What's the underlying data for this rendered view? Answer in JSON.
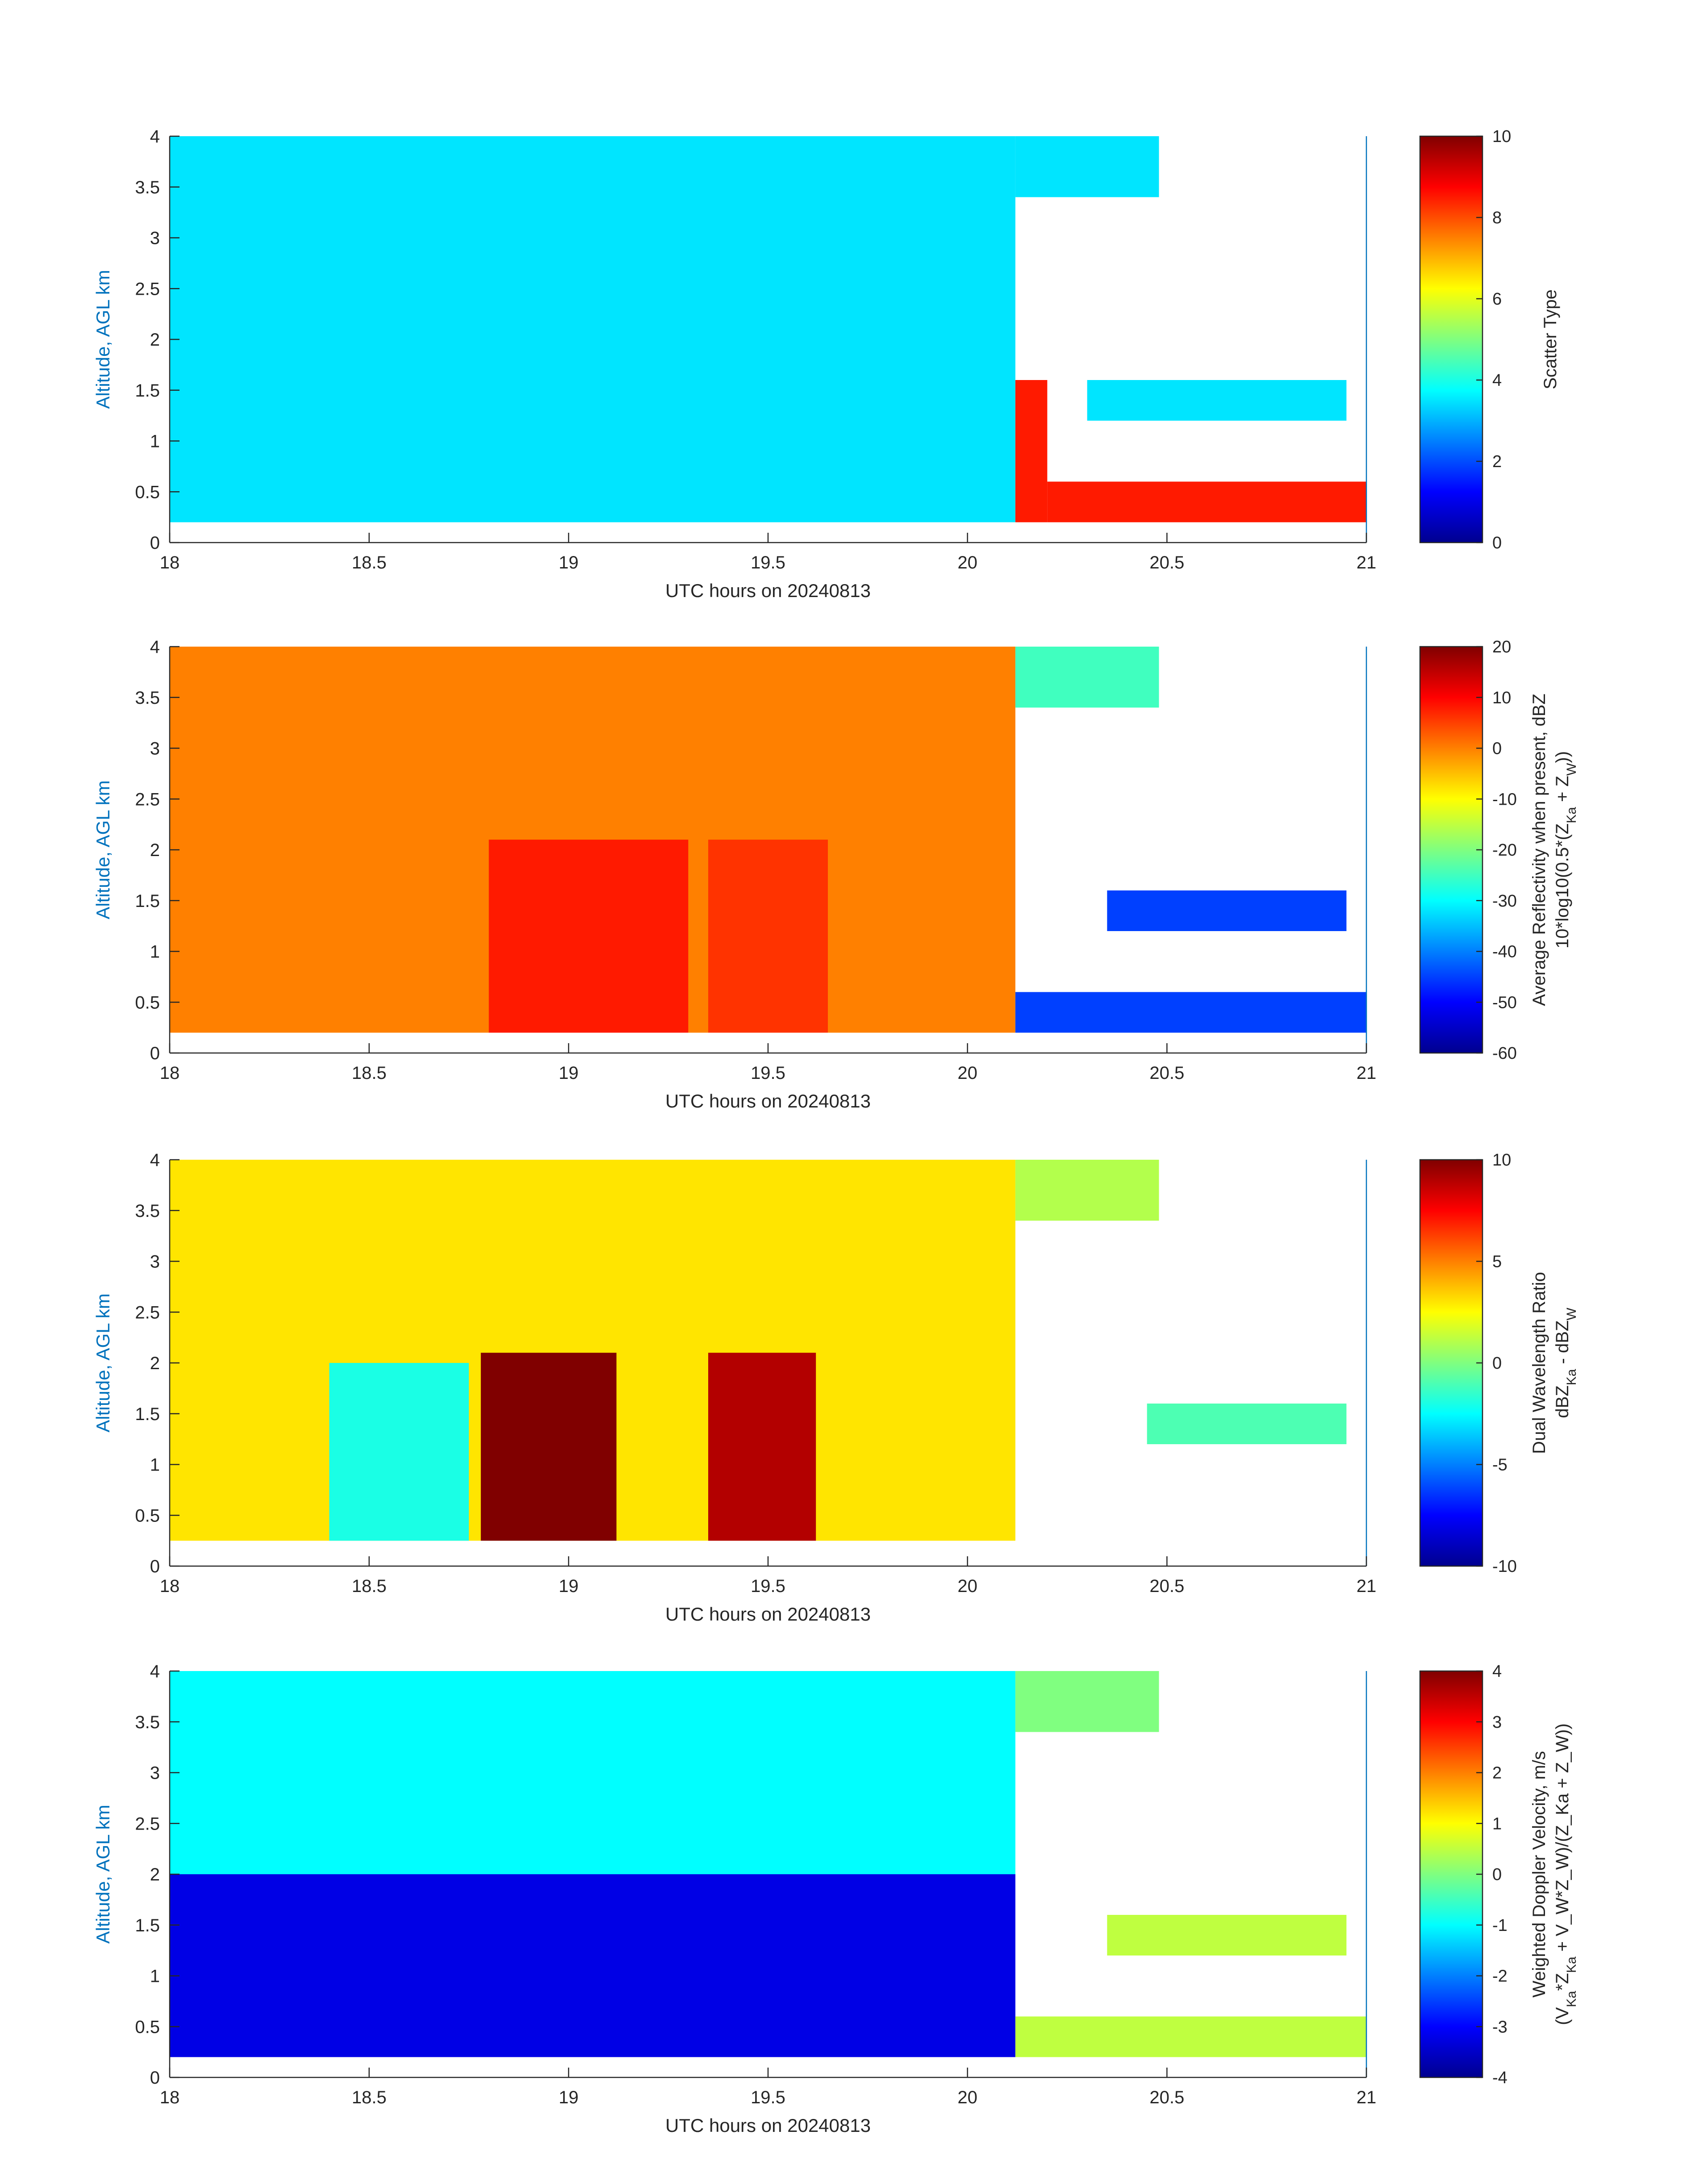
{
  "chart_data": [
    {
      "type": "heatmap",
      "xlabel": "UTC hours on 20240813",
      "ylabel": "Altitude, AGL km",
      "x_ticks": [
        18,
        18.5,
        19,
        19.5,
        20,
        20.5,
        21
      ],
      "y_ticks": [
        0,
        0.5,
        1,
        1.5,
        2,
        2.5,
        3,
        3.5,
        4
      ],
      "xlim": [
        18,
        21
      ],
      "ylim": [
        0,
        4
      ],
      "colorbar": {
        "title": "Scatter Type",
        "ticks": [
          0,
          2,
          4,
          6,
          8,
          10
        ],
        "range": [
          0,
          10
        ]
      },
      "regions": [
        {
          "x": [
            18,
            20.12
          ],
          "y": [
            0.2,
            4.0
          ],
          "value": 3.5
        },
        {
          "x": [
            20.12,
            20.48
          ],
          "y": [
            3.4,
            4.0
          ],
          "value": 3.5
        },
        {
          "x": [
            20.3,
            20.95
          ],
          "y": [
            1.2,
            1.6
          ],
          "value": 3.5
        },
        {
          "x": [
            20.12,
            20.2
          ],
          "y": [
            0.2,
            1.6
          ],
          "value": 8.5
        },
        {
          "x": [
            20.2,
            21
          ],
          "y": [
            0.2,
            0.6
          ],
          "value": 8.5
        }
      ]
    },
    {
      "type": "heatmap",
      "xlabel": "UTC hours on 20240813",
      "ylabel": "Altitude, AGL km",
      "x_ticks": [
        18,
        18.5,
        19,
        19.5,
        20,
        20.5,
        21
      ],
      "y_ticks": [
        0,
        0.5,
        1,
        1.5,
        2,
        2.5,
        3,
        3.5,
        4
      ],
      "xlim": [
        18,
        21
      ],
      "ylim": [
        0,
        4
      ],
      "colorbar": {
        "title_line1": "Average Reflectivity when present, dBZ",
        "title_line2_prefix": "10*log10(0.5*(Z",
        "title_line2_sub1": "Ka",
        "title_line2_mid": " + Z",
        "title_line2_sub2": "W",
        "title_line2_suffix": "))",
        "ticks": [
          -60,
          -50,
          -40,
          -30,
          -20,
          -10,
          0,
          10,
          20
        ],
        "range": [
          -60,
          20
        ]
      },
      "regions": [
        {
          "x": [
            18,
            20.12
          ],
          "y": [
            0.2,
            4.0
          ],
          "value": 0
        },
        {
          "x": [
            18.8,
            19.3
          ],
          "y": [
            0.2,
            2.1
          ],
          "value": 8
        },
        {
          "x": [
            19.35,
            19.65
          ],
          "y": [
            0.2,
            2.1
          ],
          "value": 6
        },
        {
          "x": [
            20.12,
            20.48
          ],
          "y": [
            3.4,
            4.0
          ],
          "value": -25
        },
        {
          "x": [
            20.35,
            20.95
          ],
          "y": [
            1.2,
            1.6
          ],
          "value": -45
        },
        {
          "x": [
            20.12,
            21
          ],
          "y": [
            0.2,
            0.6
          ],
          "value": -45
        }
      ]
    },
    {
      "type": "heatmap",
      "xlabel": "UTC hours on 20240813",
      "ylabel": "Altitude, AGL km",
      "x_ticks": [
        18,
        18.5,
        19,
        19.5,
        20,
        20.5,
        21
      ],
      "y_ticks": [
        0,
        0.5,
        1,
        1.5,
        2,
        2.5,
        3,
        3.5,
        4
      ],
      "xlim": [
        18,
        21
      ],
      "ylim": [
        0,
        4
      ],
      "colorbar": {
        "title_line1": "Dual Wavelength Ratio",
        "title_line2_prefix": "dBZ",
        "title_line2_sub1": "Ka",
        "title_line2_mid": " - dBZ",
        "title_line2_sub2": "W",
        "title_line2_suffix": "",
        "ticks": [
          -10,
          -5,
          0,
          5,
          10
        ],
        "range": [
          -10,
          10
        ]
      },
      "regions": [
        {
          "x": [
            18,
            20.12
          ],
          "y": [
            0.25,
            4.0
          ],
          "value": 3
        },
        {
          "x": [
            18.78,
            19.12
          ],
          "y": [
            0.25,
            2.1
          ],
          "value": 10
        },
        {
          "x": [
            19.35,
            19.62
          ],
          "y": [
            0.25,
            2.1
          ],
          "value": 9
        },
        {
          "x": [
            18.4,
            18.75
          ],
          "y": [
            0.25,
            2.0
          ],
          "value": -2
        },
        {
          "x": [
            20.12,
            20.48
          ],
          "y": [
            3.4,
            4.0
          ],
          "value": 1
        },
        {
          "x": [
            20.45,
            20.95
          ],
          "y": [
            1.2,
            1.6
          ],
          "value": -1
        }
      ]
    },
    {
      "type": "heatmap",
      "xlabel": "UTC hours on 20240813",
      "ylabel": "Altitude, AGL km",
      "x_ticks": [
        18,
        18.5,
        19,
        19.5,
        20,
        20.5,
        21
      ],
      "y_ticks": [
        0,
        0.5,
        1,
        1.5,
        2,
        2.5,
        3,
        3.5,
        4
      ],
      "xlim": [
        18,
        21
      ],
      "ylim": [
        0,
        4
      ],
      "colorbar": {
        "title_line1": "Weighted Doppler Velocity, m/s",
        "title_line2_prefix": "(V",
        "title_line2_sub1": "Ka",
        "title_line2_mid": "*Z",
        "title_line2_sub2": "Ka",
        "title_line2_suffix": " + V_W*Z_W)/(Z_Ka + Z_W))",
        "ticks": [
          -4,
          -3,
          -2,
          -1,
          0,
          1,
          2,
          3,
          4
        ],
        "range": [
          -4,
          4
        ]
      },
      "regions": [
        {
          "x": [
            18,
            20.12
          ],
          "y": [
            2.0,
            4.0
          ],
          "value": -1
        },
        {
          "x": [
            18,
            20.12
          ],
          "y": [
            0.2,
            2.0
          ],
          "value": -3.2
        },
        {
          "x": [
            20.12,
            20.48
          ],
          "y": [
            3.4,
            4.0
          ],
          "value": 0
        },
        {
          "x": [
            20.35,
            20.95
          ],
          "y": [
            1.2,
            1.6
          ],
          "value": 0.5
        },
        {
          "x": [
            20.12,
            21
          ],
          "y": [
            0.2,
            0.6
          ],
          "value": 0.5
        }
      ]
    }
  ]
}
